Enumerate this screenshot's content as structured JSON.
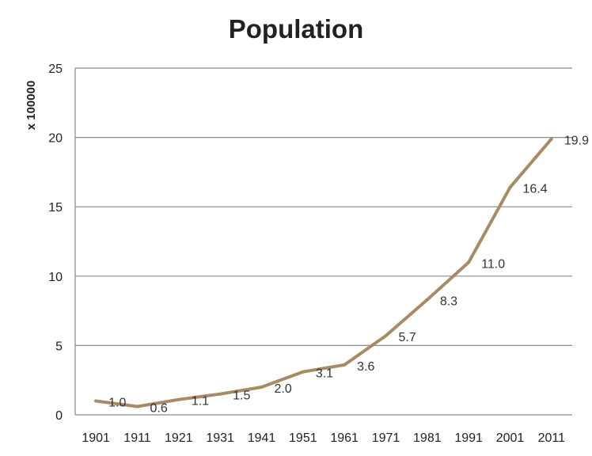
{
  "chart_data": {
    "type": "line",
    "title": "Population",
    "xlabel": "",
    "ylabel": "x 100000",
    "categories": [
      "1901",
      "1911",
      "1921",
      "1931",
      "1941",
      "1951",
      "1961",
      "1971",
      "1981",
      "1991",
      "2001",
      "2011"
    ],
    "series": [
      {
        "values": [
          1.0,
          0.6,
          1.1,
          1.5,
          2.0,
          3.1,
          3.6,
          5.7,
          8.3,
          11.0,
          16.4,
          19.9
        ],
        "data_labels": [
          "1.0",
          "0.6",
          "1.1",
          "1.5",
          "2.0",
          "3.1",
          "3.6",
          "5.7",
          "8.3",
          "11.0",
          "16.4",
          "19.9"
        ],
        "color": "#a88b62"
      }
    ],
    "ylim": [
      0,
      25
    ],
    "yticks": [
      "0",
      "5",
      "10",
      "15",
      "20",
      "25"
    ],
    "grid": true,
    "legend": "none",
    "gridline_color": "#8a8a8a"
  }
}
